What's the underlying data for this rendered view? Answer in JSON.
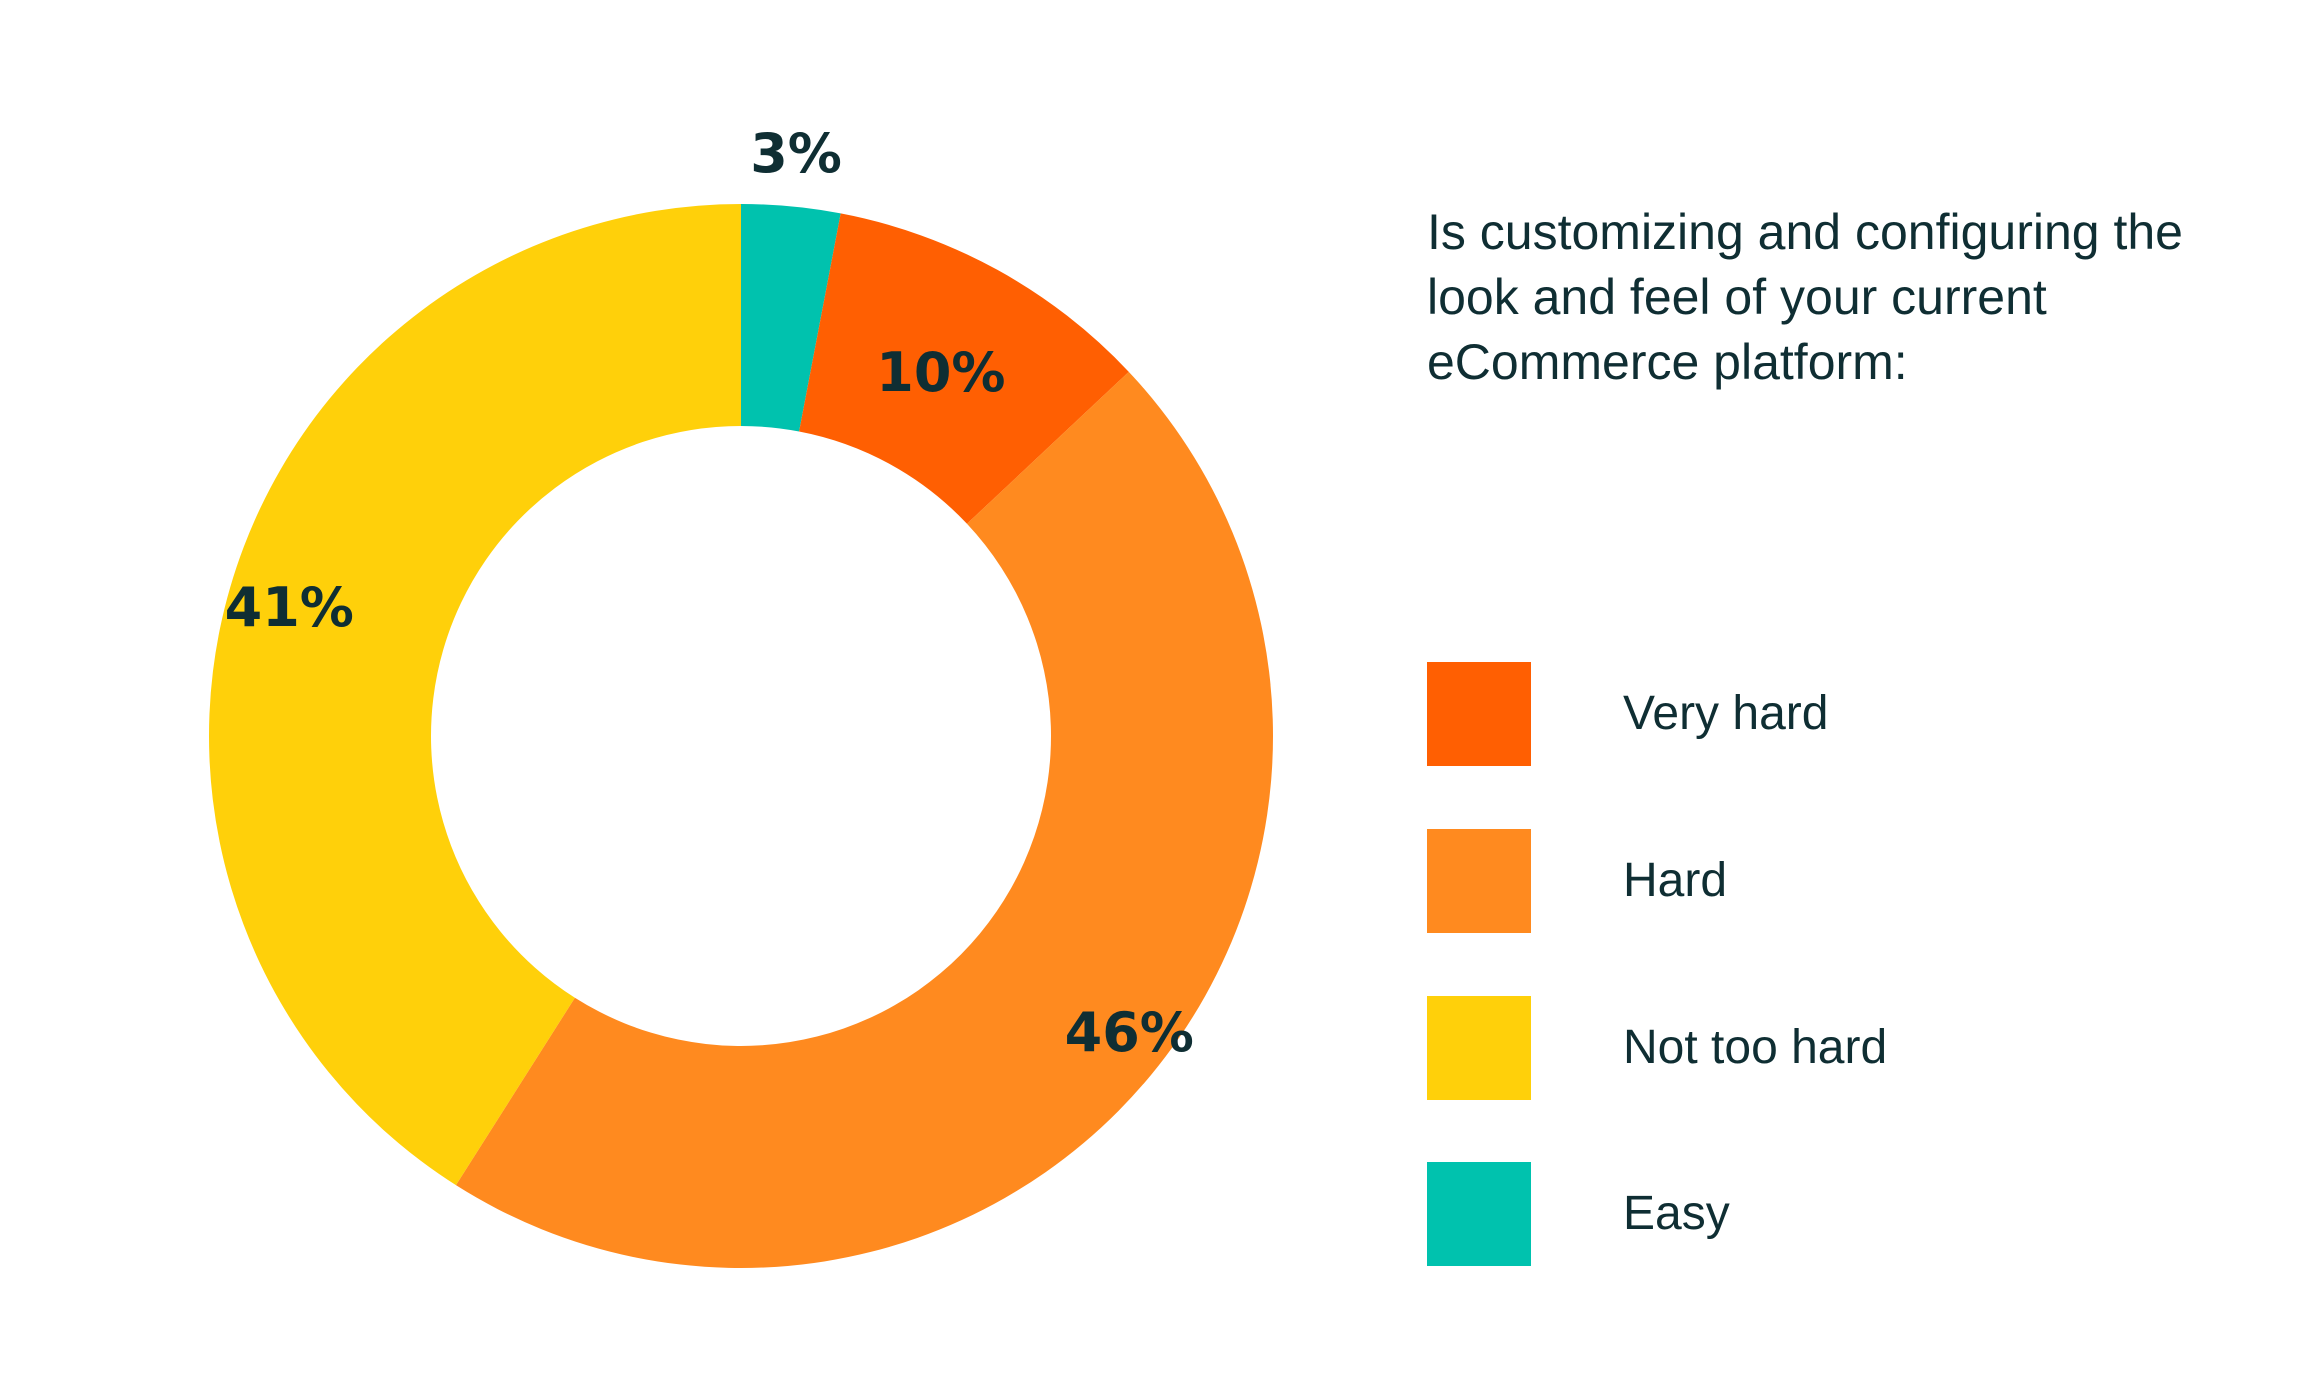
{
  "chart_data": {
    "type": "pie",
    "variant": "donut",
    "title": "Is customizing and configuring the look and feel of your current eCommerce platform:",
    "slices": [
      {
        "name": "Easy",
        "value": 3,
        "label": "3%",
        "color": "#00C2AE"
      },
      {
        "name": "Very hard",
        "value": 10,
        "label": "10%",
        "color": "#FF5F02"
      },
      {
        "name": "Hard",
        "value": 46,
        "label": "46%",
        "color": "#FF8A1F"
      },
      {
        "name": "Not too hard",
        "value": 41,
        "label": "41%",
        "color": "#FFD00A"
      }
    ],
    "legend": {
      "placement": "right",
      "items": [
        {
          "label": "Very hard",
          "color": "#FF5F02"
        },
        {
          "label": "Hard",
          "color": "#FF8A1F"
        },
        {
          "label": "Not too hard",
          "color": "#FFD00A"
        },
        {
          "label": "Easy",
          "color": "#00C2AE"
        }
      ]
    }
  }
}
